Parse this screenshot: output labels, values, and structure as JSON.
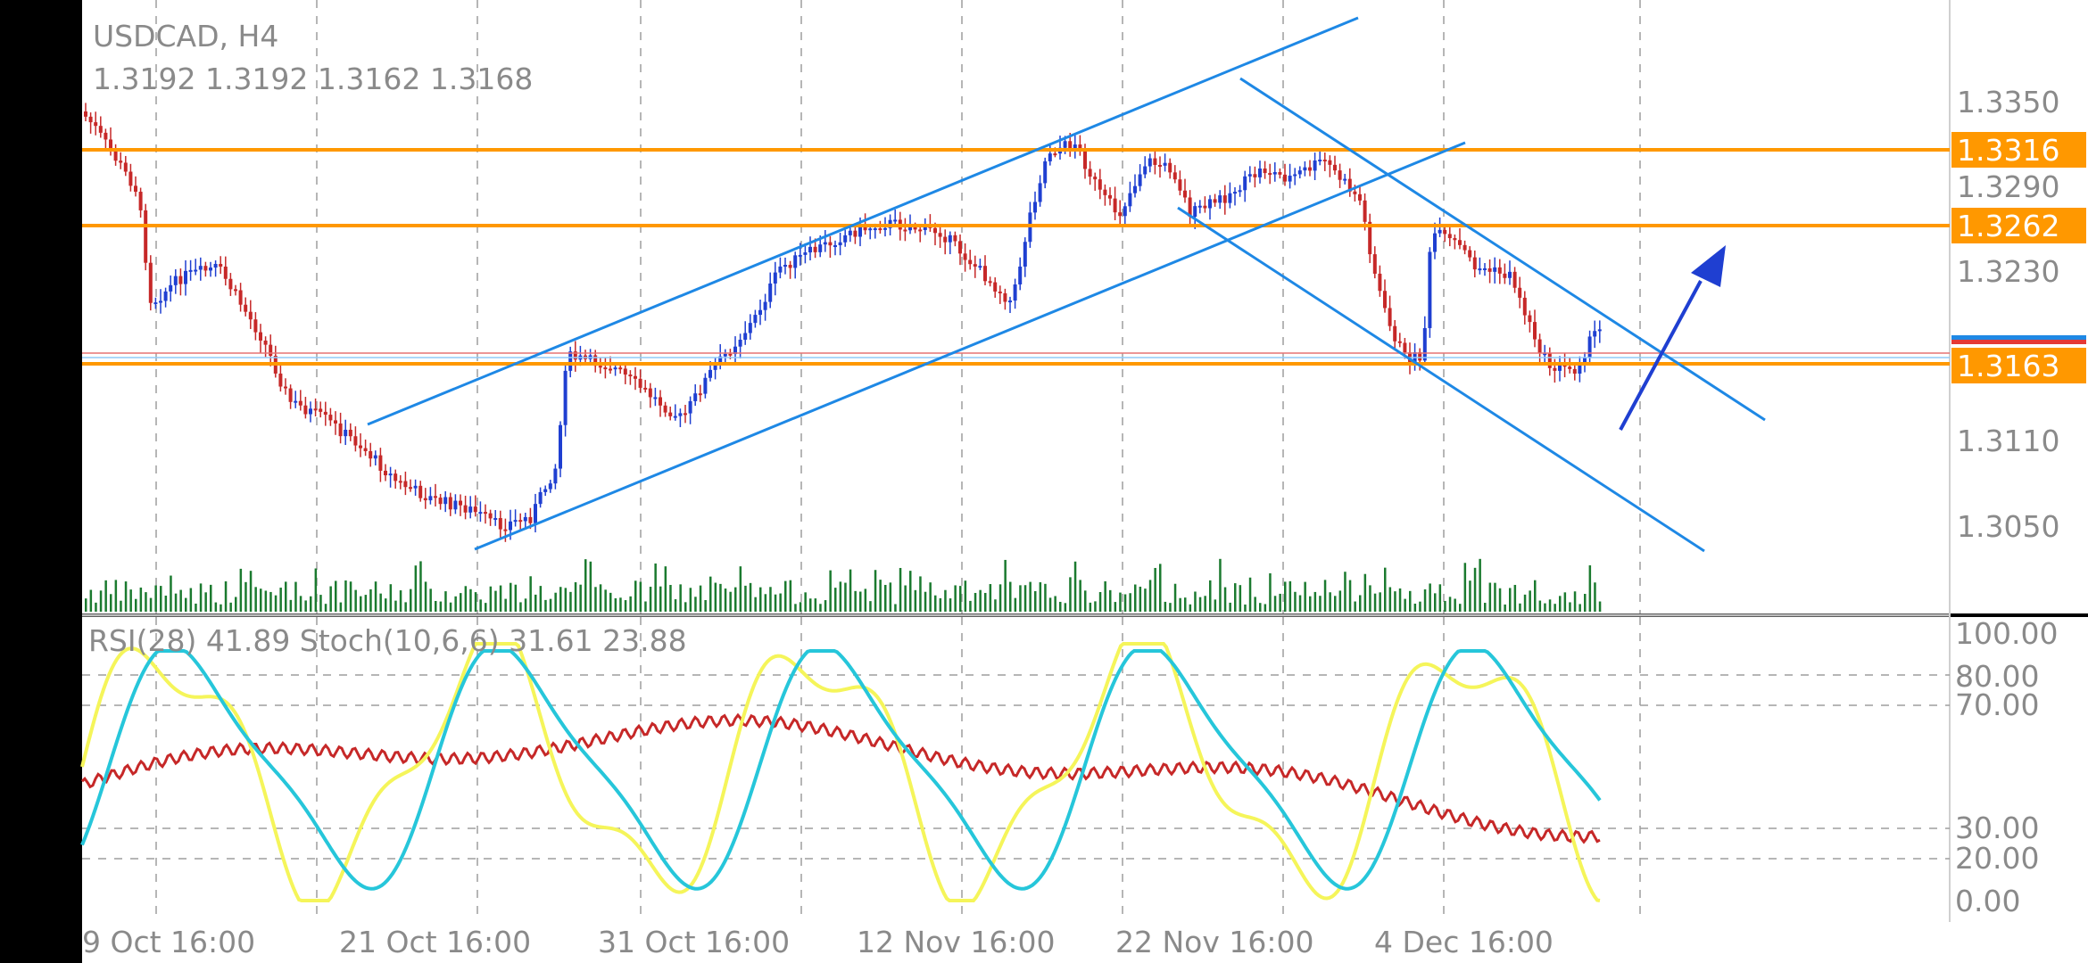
{
  "symbol": "USDCAD, H4",
  "ohlc": "1.3192 1.3192 1.3162 1.3168",
  "indicator_header": "RSI(28) 41.89 Stoch(10,6,6) 31.61 23.88",
  "colors": {
    "panel_bg": "#ffffff",
    "grid": "#9e9e9e",
    "bull": "#1f3fd1",
    "bear": "#c62828",
    "level": "#ff9800",
    "channel": "#1e88e5",
    "arrow": "#1f3fd1",
    "volume": "#1b7a2f",
    "rsi": "#c62828",
    "stoch_main": "#f5f55a",
    "stoch_signal": "#26c6da",
    "axis_text": "#8a8a8a"
  },
  "price_axis": {
    "ticks": [
      "1.3350",
      "1.3290",
      "1.3230",
      "1.3110",
      "1.3050"
    ],
    "levels": [
      {
        "name": "resistance-upper",
        "label": "1.3316"
      },
      {
        "name": "resistance-mid",
        "label": "1.3262"
      },
      {
        "name": "support",
        "label": "1.3163"
      }
    ]
  },
  "indicator_axis": {
    "ticks": [
      "100.00",
      "80.00",
      "70.00",
      "30.00",
      "20.00",
      "0.00"
    ]
  },
  "time_axis": {
    "ticks": [
      "9 Oct 16:00",
      "21 Oct 16:00",
      "31 Oct 16:00",
      "12 Nov 16:00",
      "22 Nov 16:00",
      "4 Dec 16:00"
    ]
  }
}
